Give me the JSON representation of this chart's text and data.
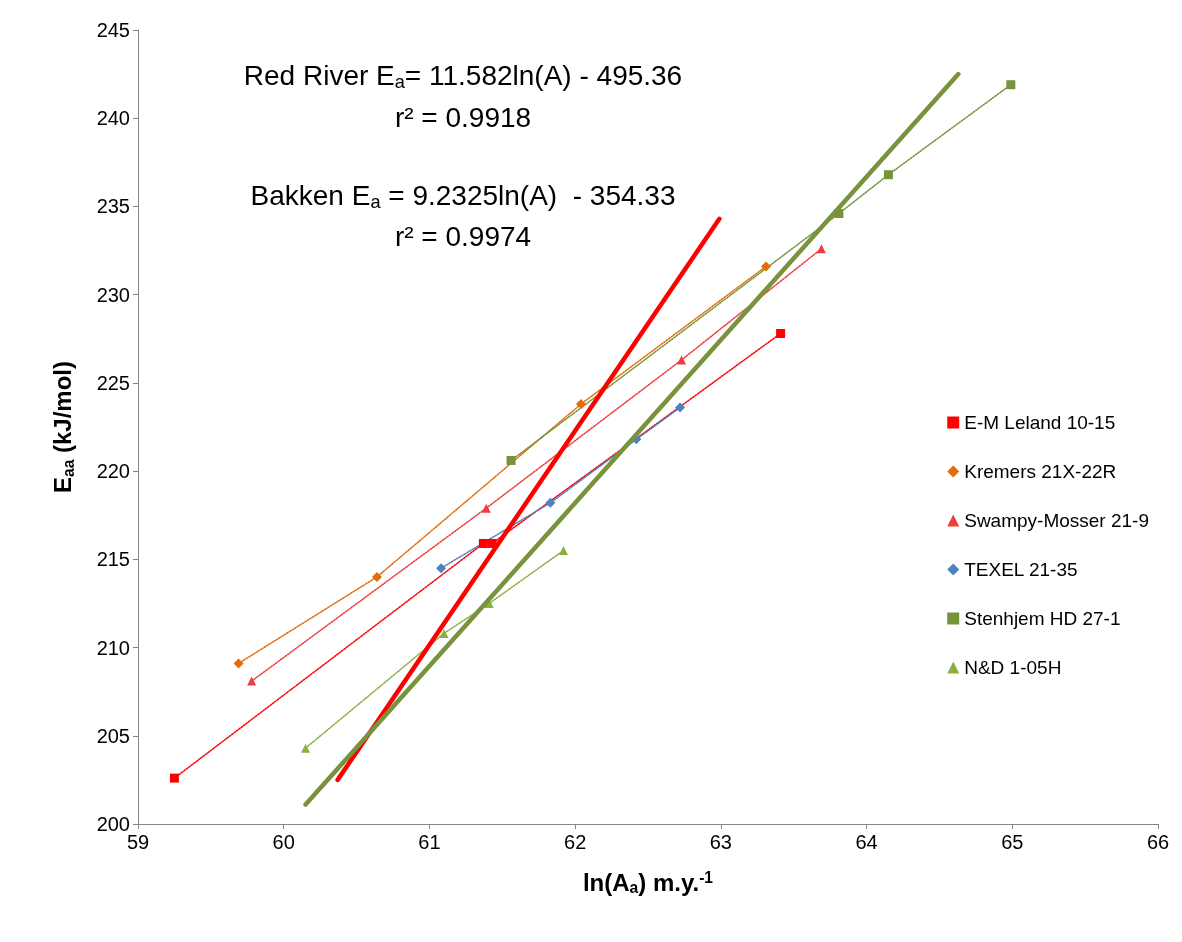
{
  "chart_data": {
    "type": "line",
    "xlabel": "ln(A$_{a}$) m.y.$^{-1}$",
    "ylabel": "E$_{aa}$ (kJ/mol)",
    "annotations": [
      "Red River E$_{a}$= 11.582ln(A) - 495.36",
      "r² = 0.9918",
      "Bakken E$_{a}$ = 9.2325ln(A)  - 354.33",
      "r² = 0.9974"
    ],
    "xlim": [
      59,
      66
    ],
    "xticks": [
      59,
      60,
      61,
      62,
      63,
      64,
      65,
      66
    ],
    "ylim": [
      200,
      245
    ],
    "yticks": [
      200,
      205,
      210,
      215,
      220,
      225,
      230,
      235,
      240,
      245
    ],
    "grid": false,
    "legend": "right",
    "line_style": "dotted",
    "series": [
      {
        "name": "E-M Leland 10-15",
        "color": "#ff0000",
        "marker": "square",
        "x": [
          59.25,
          61.37,
          61.43,
          63.41
        ],
        "values": [
          202.6,
          215.9,
          215.9,
          227.8
        ]
      },
      {
        "name": "Kremers 21X-22R",
        "color": "#e46c0a",
        "marker": "diamond",
        "x": [
          59.69,
          60.64,
          62.04,
          63.31
        ],
        "values": [
          209.1,
          214.0,
          223.8,
          231.6
        ]
      },
      {
        "name": "Swampy-Mosser 21-9",
        "color": "#f03c3c",
        "marker": "triangle",
        "x": [
          59.78,
          61.39,
          62.73,
          63.69
        ],
        "values": [
          208.1,
          217.9,
          226.3,
          232.6
        ]
      },
      {
        "name": "TEXEL 21-35",
        "color": "#4f81bd",
        "marker": "diamond",
        "x": [
          61.08,
          61.83,
          62.42,
          62.72
        ],
        "values": [
          214.5,
          218.2,
          221.8,
          223.6
        ]
      },
      {
        "name": "Stenhjem HD 27-1",
        "color": "#77933c",
        "marker": "square",
        "x": [
          61.56,
          63.81,
          64.15,
          64.99
        ],
        "values": [
          220.6,
          234.6,
          236.8,
          241.9
        ]
      },
      {
        "name": "N&D 1-05H",
        "color": "#8cb040",
        "marker": "triangle",
        "x": [
          60.15,
          61.1,
          61.41,
          61.92
        ],
        "values": [
          204.3,
          210.8,
          212.5,
          215.5
        ]
      },
      {
        "color": "#ff0000",
        "marker": "none",
        "line_style": "solid",
        "x": [
          60.37,
          62.99
        ],
        "values": [
          202.5,
          234.3
        ]
      },
      {
        "color": "#77933c",
        "marker": "none",
        "line_style": "solid",
        "x": [
          60.15,
          64.63
        ],
        "values": [
          201.1,
          242.5
        ]
      }
    ]
  }
}
